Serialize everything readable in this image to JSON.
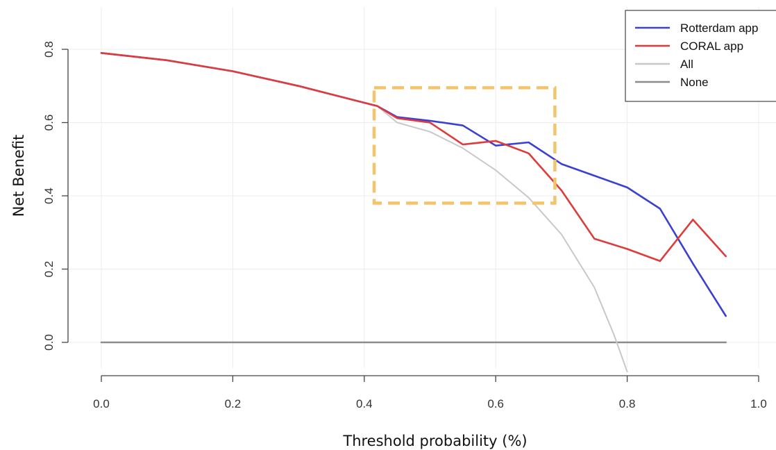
{
  "chart_data": {
    "type": "line",
    "xlabel": "Threshold probability (%)",
    "ylabel": "Net Benefit",
    "xlim": [
      0.0,
      1.0
    ],
    "ylim": [
      -0.08,
      0.85
    ],
    "x_ticks": [
      "0.0",
      "0.2",
      "0.4",
      "0.6",
      "0.8",
      "1.0"
    ],
    "y_ticks": [
      "0.0",
      "0.2",
      "0.4",
      "0.6",
      "0.8"
    ],
    "grid": true,
    "legend_position": "top-right",
    "series": [
      {
        "name": "Rotterdam app",
        "color": "#3a3fd6",
        "points": [
          [
            0.0,
            0.79
          ],
          [
            0.1,
            0.77
          ],
          [
            0.2,
            0.74
          ],
          [
            0.3,
            0.7
          ],
          [
            0.42,
            0.645
          ],
          [
            0.45,
            0.615
          ],
          [
            0.5,
            0.605
          ],
          [
            0.55,
            0.592
          ],
          [
            0.6,
            0.537
          ],
          [
            0.65,
            0.546
          ],
          [
            0.7,
            0.487
          ],
          [
            0.75,
            0.455
          ],
          [
            0.8,
            0.423
          ],
          [
            0.85,
            0.365
          ],
          [
            0.9,
            0.215
          ],
          [
            0.95,
            0.072
          ]
        ]
      },
      {
        "name": "CORAL app",
        "color": "#e03b3b",
        "points": [
          [
            0.0,
            0.79
          ],
          [
            0.1,
            0.77
          ],
          [
            0.2,
            0.74
          ],
          [
            0.3,
            0.7
          ],
          [
            0.42,
            0.645
          ],
          [
            0.45,
            0.612
          ],
          [
            0.5,
            0.6
          ],
          [
            0.55,
            0.54
          ],
          [
            0.6,
            0.55
          ],
          [
            0.65,
            0.516
          ],
          [
            0.7,
            0.415
          ],
          [
            0.75,
            0.283
          ],
          [
            0.8,
            0.255
          ],
          [
            0.85,
            0.222
          ],
          [
            0.9,
            0.335
          ],
          [
            0.95,
            0.235
          ]
        ]
      },
      {
        "name": "All",
        "color": "#c8c8c8",
        "points": [
          [
            0.0,
            0.79
          ],
          [
            0.1,
            0.77
          ],
          [
            0.2,
            0.74
          ],
          [
            0.3,
            0.7
          ],
          [
            0.42,
            0.645
          ],
          [
            0.45,
            0.6
          ],
          [
            0.5,
            0.575
          ],
          [
            0.55,
            0.53
          ],
          [
            0.6,
            0.47
          ],
          [
            0.65,
            0.395
          ],
          [
            0.7,
            0.295
          ],
          [
            0.75,
            0.15
          ],
          [
            0.78,
            0.02
          ],
          [
            0.8,
            -0.08
          ]
        ]
      },
      {
        "name": "None",
        "color": "#8c8c8c",
        "points": [
          [
            0.0,
            0.0
          ],
          [
            0.95,
            0.0
          ]
        ]
      }
    ],
    "annotations": [
      {
        "type": "dashed-box",
        "color": "#f5c46a",
        "x_range": [
          0.415,
          0.69
        ],
        "y_range": [
          0.38,
          0.695
        ]
      }
    ]
  }
}
